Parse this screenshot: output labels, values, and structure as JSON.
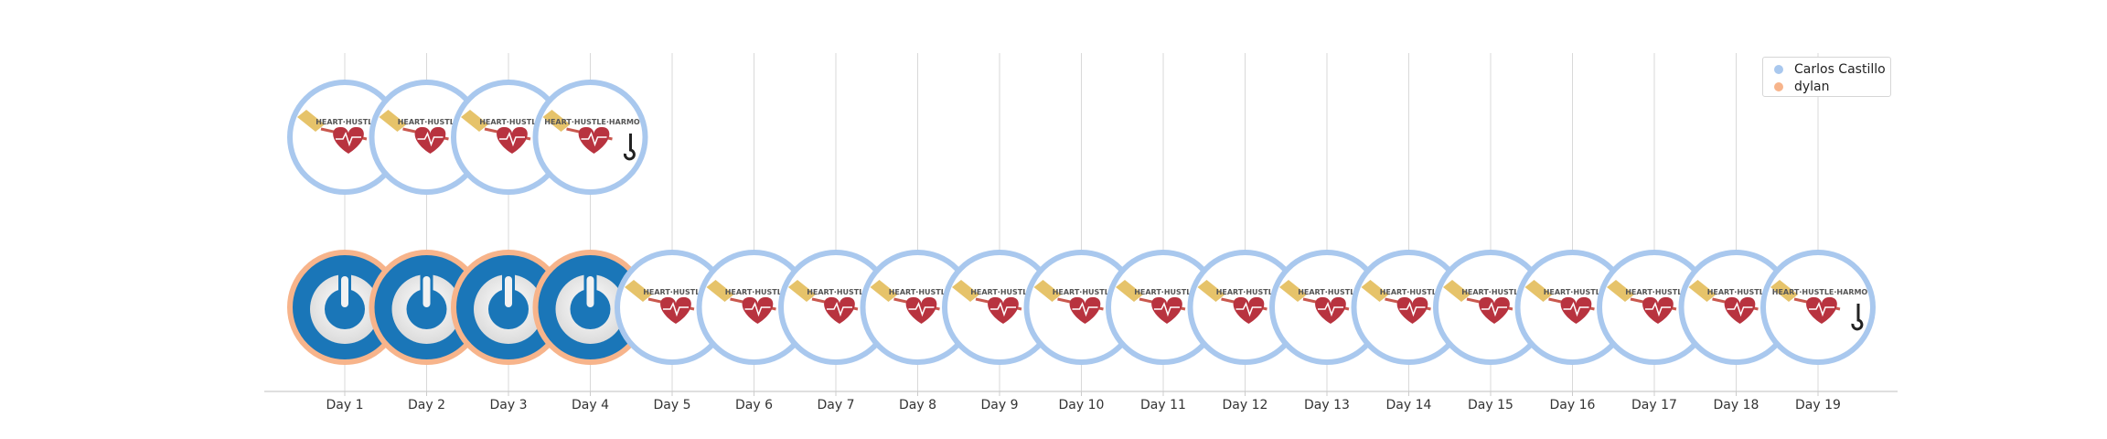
{
  "chart_data": {
    "type": "scatter",
    "title": "",
    "xlabel": "",
    "ylabel": "",
    "categories": [
      "Day 1",
      "Day 2",
      "Day 3",
      "Day 4",
      "Day 5",
      "Day 6",
      "Day 7",
      "Day 8",
      "Day 9",
      "Day 10",
      "Day 11",
      "Day 12",
      "Day 13",
      "Day 14",
      "Day 15",
      "Day 16",
      "Day 17",
      "Day 18",
      "Day 19"
    ],
    "grid": "vertical",
    "legend": "top-right",
    "badge_texts": {
      "heart": "HEART·HUSTLE",
      "heart_full": "HEART·HUSTLE·HARMO"
    },
    "series": [
      {
        "name": "Carlos Castillo",
        "color": "#a9c8ee",
        "row": "top",
        "x": [
          "Day 1",
          "Day 2",
          "Day 3",
          "Day 4"
        ],
        "icons": [
          "heart-badge",
          "heart-badge",
          "heart-badge",
          "heart-badge-harmony"
        ]
      },
      {
        "name": "dylan",
        "color": "#f7b48b",
        "row": "bottom",
        "x": [
          "Day 1",
          "Day 2",
          "Day 3",
          "Day 4"
        ],
        "icons": [
          "power-badge",
          "power-badge",
          "power-badge",
          "power-badge"
        ]
      },
      {
        "name": "Carlos Castillo",
        "color": "#a9c8ee",
        "row": "bottom",
        "x": [
          "Day 5",
          "Day 6",
          "Day 7",
          "Day 8",
          "Day 9",
          "Day 10",
          "Day 11",
          "Day 12",
          "Day 13",
          "Day 14",
          "Day 15",
          "Day 16",
          "Day 17",
          "Day 18",
          "Day 19"
        ],
        "icons": [
          "heart-badge",
          "heart-badge",
          "heart-badge",
          "heart-badge",
          "heart-badge",
          "heart-badge",
          "heart-badge",
          "heart-badge",
          "heart-badge",
          "heart-badge",
          "heart-badge",
          "heart-badge",
          "heart-badge",
          "heart-badge",
          "heart-badge-harmony"
        ]
      }
    ]
  },
  "legend_items": [
    {
      "label": "Carlos Castillo",
      "color": "#a9c8ee"
    },
    {
      "label": "dylan",
      "color": "#f7b48b"
    }
  ]
}
